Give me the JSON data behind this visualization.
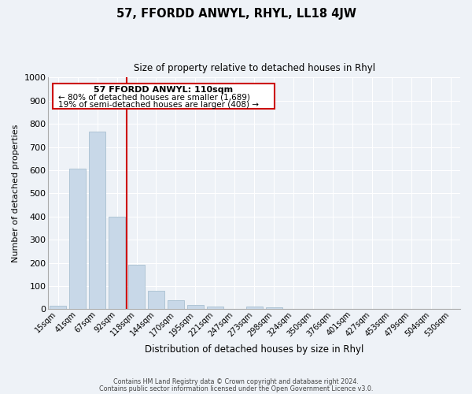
{
  "title": "57, FFORDD ANWYL, RHYL, LL18 4JW",
  "subtitle": "Size of property relative to detached houses in Rhyl",
  "xlabel": "Distribution of detached houses by size in Rhyl",
  "ylabel": "Number of detached properties",
  "bar_labels": [
    "15sqm",
    "41sqm",
    "67sqm",
    "92sqm",
    "118sqm",
    "144sqm",
    "170sqm",
    "195sqm",
    "221sqm",
    "247sqm",
    "273sqm",
    "298sqm",
    "324sqm",
    "350sqm",
    "376sqm",
    "401sqm",
    "427sqm",
    "453sqm",
    "479sqm",
    "504sqm",
    "530sqm"
  ],
  "bar_values": [
    15,
    605,
    765,
    400,
    190,
    78,
    40,
    18,
    12,
    0,
    10,
    8,
    0,
    0,
    0,
    0,
    0,
    0,
    0,
    0,
    0
  ],
  "bar_color": "#c8d8e8",
  "bar_edgecolor": "#a8bfd0",
  "property_line_index": 4,
  "property_line_color": "#cc0000",
  "ylim": [
    0,
    1000
  ],
  "yticks": [
    0,
    100,
    200,
    300,
    400,
    500,
    600,
    700,
    800,
    900,
    1000
  ],
  "annotation_title": "57 FFORDD ANWYL: 110sqm",
  "annotation_line1": "← 80% of detached houses are smaller (1,689)",
  "annotation_line2": "19% of semi-detached houses are larger (408) →",
  "annotation_box_color": "#cc0000",
  "footer_line1": "Contains HM Land Registry data © Crown copyright and database right 2024.",
  "footer_line2": "Contains public sector information licensed under the Open Government Licence v3.0.",
  "background_color": "#eef2f7",
  "grid_color": "#ffffff"
}
